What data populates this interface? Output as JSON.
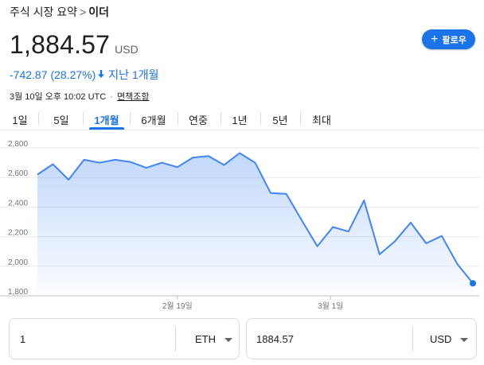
{
  "breadcrumb": {
    "parent": "주식 시장 요약",
    "separator": ">",
    "current": "이더"
  },
  "price": {
    "value": "1,884.57",
    "currency": "USD"
  },
  "change": {
    "amount": "-742.87",
    "percent": "(28.27%)",
    "direction_icon": "arrow-down-icon",
    "period": "지난 1개월"
  },
  "follow_button": {
    "label": "팔로우",
    "icon": "plus-icon"
  },
  "timestamp": {
    "text": "3월 10일 오후 10:02 UTC",
    "separator": "·",
    "disclaimer": "면책조항"
  },
  "tabs": [
    {
      "label": "1일",
      "active": false
    },
    {
      "label": "5일",
      "active": false
    },
    {
      "label": "1개월",
      "active": true
    },
    {
      "label": "6개월",
      "active": false
    },
    {
      "label": "연중",
      "active": false
    },
    {
      "label": "1년",
      "active": false
    },
    {
      "label": "5년",
      "active": false
    },
    {
      "label": "최대",
      "active": false
    }
  ],
  "colors": {
    "accent": "#1a73e8",
    "line": "#4285f4",
    "down": "#1a73e8",
    "grid": "#e8eaed"
  },
  "chart_data": {
    "type": "area",
    "y_tick_labels": [
      "2,800",
      "2,600",
      "2,400",
      "2,200",
      "2,000",
      "1,800"
    ],
    "y_ticks": [
      2800,
      2600,
      2400,
      2200,
      2000,
      1800
    ],
    "ylim": [
      1800,
      2800
    ],
    "x_tick_labels": [
      "2월 19일",
      "3월 1일"
    ],
    "grid": true,
    "series": [
      {
        "values": [
          2620,
          2690,
          2585,
          2720,
          2700,
          2720,
          2705,
          2665,
          2700,
          2670,
          2735,
          2745,
          2685,
          2765,
          2700,
          2495,
          2490,
          2310,
          2135,
          2265,
          2235,
          2445,
          2080,
          2170,
          2295,
          2155,
          2205,
          2015,
          1884.57
        ]
      }
    ]
  },
  "converter": {
    "amount_value": "1",
    "amount_unit": "ETH",
    "result_value": "1884.57",
    "result_unit": "USD"
  }
}
